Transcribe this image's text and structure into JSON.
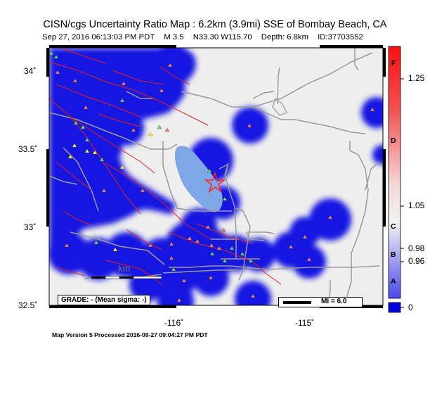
{
  "header": {
    "title": "CISN/cgs Uncertainty Ratio Map : 6.2km (3.9mi) SSE of Bombay Beach, CA",
    "date": "Sep 27, 2016 06:13:03 PM PDT",
    "magnitude": "M 3.5",
    "location": "N33.30 W115.70",
    "depth": "Depth: 6.8km",
    "event_id": "ID:37703552"
  },
  "map": {
    "lat_ticks": [
      "34˚",
      "33.5˚",
      "33˚",
      "32.5˚"
    ],
    "lon_ticks": [
      "-116˚",
      "-115˚"
    ],
    "scale_label": "km",
    "grade_box": "GRADE: - (Mean sigma: -)",
    "mi_legend": "MI = 6.0",
    "epicenter_icon": "star-icon",
    "colors": {
      "land": "#eeeeee",
      "uncertainty": "#1010e6",
      "lake": "#7da7e6",
      "fault": "#e02020",
      "road": "#9a9a9a",
      "station_triangle_green": "#5fdc7a",
      "station_triangle_red": "#f08070",
      "station_triangle_yellow": "#ffff33",
      "epicenter": "#ff2020"
    }
  },
  "colorbar": {
    "letters": [
      "F",
      "D",
      "C",
      "B",
      "A"
    ],
    "values": [
      "1.25",
      "1.05",
      "0.98",
      "0.96",
      "0"
    ]
  },
  "footer": {
    "text": "Map Version 5 Processed 2016-09-27 09:04:27 PM PDT"
  }
}
